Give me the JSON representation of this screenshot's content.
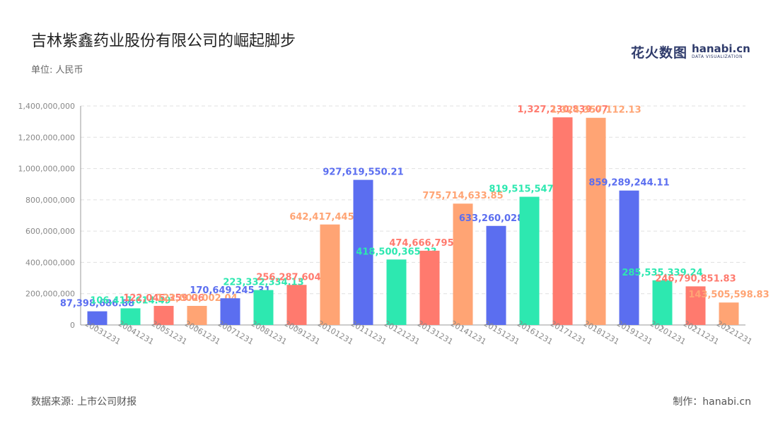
{
  "title": "吉林紫鑫药业股份有限公司的崛起脚步",
  "unit_label": "单位: 人民币",
  "source": "数据来源: 上市公司财报",
  "credit": "制作：hanabi.cn",
  "logo": {
    "cn": "花火数图",
    "en": "hanabi.cn",
    "en_sub": "DATA VISUALIZATION"
  },
  "colors": [
    "#5b6ef0",
    "#2de8b0",
    "#ff7a6e",
    "#ffa474"
  ],
  "chart_data": {
    "type": "bar",
    "title": "吉林紫鑫药业股份有限公司的崛起脚步",
    "xlabel": "",
    "ylabel": "单位: 人民币",
    "ylim": [
      0,
      1400000000
    ],
    "yticks": [
      0,
      200000000,
      400000000,
      600000000,
      800000000,
      1000000000,
      1200000000,
      1400000000
    ],
    "ytick_labels": [
      "0",
      "200,000,000",
      "400,000,000",
      "600,000,000",
      "800,000,000",
      "1,000,000,000",
      "1,200,000,000",
      "1,400,000,000"
    ],
    "grid": true,
    "categories": [
      "20031231",
      "20041231",
      "20051231",
      "20061231",
      "20071231",
      "20081231",
      "20091231",
      "20101231",
      "20111231",
      "20121231",
      "20131231",
      "20141231",
      "20151231",
      "20161231",
      "20171231",
      "20181231",
      "20191231",
      "20201231",
      "20211231",
      "20221231"
    ],
    "values": [
      87398686.88,
      106417614.49,
      122045359.06,
      122002002.04,
      170649245.31,
      223332334.13,
      256287604.81,
      642417445.93,
      927619550.21,
      418500365.23,
      474666795.22,
      775714633.85,
      633260028.2,
      819515547.34,
      1327230839.07,
      1324357112.13,
      859289244.11,
      285535339.24,
      246790851.83,
      143505598.83
    ],
    "value_labels": [
      "87,398,686.88",
      "106,417,614.49",
      "122,045,359.06",
      "122,002,002.04",
      "170,649,245.31",
      "223,332,334.13",
      "256,287,604.81",
      "642,417,445.93",
      "927,619,550.21",
      "418,500,365.23",
      "474,666,795.22",
      "775,714,633.85",
      "633,260,028.2",
      "819,515,547.34",
      "1,327,230,839.07",
      "1,324,357,112.13",
      "859,289,244.11",
      "285,535,339.24",
      "246,790,851.83",
      "143,505,598.83"
    ]
  }
}
